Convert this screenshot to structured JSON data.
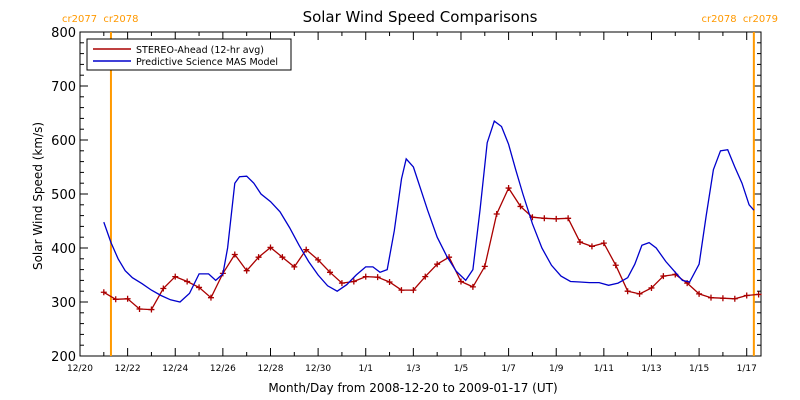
{
  "chart_data": {
    "type": "line",
    "title": "Solar Wind Speed Comparisons",
    "xlabel": "Month/Day from 2008-12-20 to 2009-01-17 (UT)",
    "ylabel": "Solar Wind Speed (km/s)",
    "x_start_date": "2008-12-20",
    "xlim": [
      0,
      28.6
    ],
    "ylim": [
      200,
      800
    ],
    "y_ticks": [
      200,
      300,
      400,
      500,
      600,
      700,
      800
    ],
    "x_ticks": [
      {
        "x": 0,
        "label": "12/20"
      },
      {
        "x": 2,
        "label": "12/22"
      },
      {
        "x": 4,
        "label": "12/24"
      },
      {
        "x": 6,
        "label": "12/26"
      },
      {
        "x": 8,
        "label": "12/28"
      },
      {
        "x": 10,
        "label": "12/30"
      },
      {
        "x": 12,
        "label": "1/1"
      },
      {
        "x": 14,
        "label": "1/3"
      },
      {
        "x": 16,
        "label": "1/5"
      },
      {
        "x": 18,
        "label": "1/7"
      },
      {
        "x": 20,
        "label": "1/9"
      },
      {
        "x": 22,
        "label": "1/11"
      },
      {
        "x": 24,
        "label": "1/13"
      },
      {
        "x": 26,
        "label": "1/15"
      },
      {
        "x": 28,
        "label": "1/17"
      }
    ],
    "carrington_markers": [
      {
        "x": 1.3,
        "label": "cr2077  cr2078",
        "align": "left"
      },
      {
        "x": 28.3,
        "label": "cr2078  cr2079",
        "align": "right"
      }
    ],
    "legend_position": "top-left",
    "series": [
      {
        "name": "STEREO-Ahead (12-hr avg)",
        "color": "#aa0000",
        "markers": true,
        "x": [
          1.0,
          1.5,
          2.0,
          2.5,
          3.0,
          3.5,
          4.0,
          4.5,
          5.0,
          5.5,
          6.0,
          6.5,
          7.0,
          7.5,
          8.0,
          8.5,
          9.0,
          9.5,
          10.0,
          10.5,
          11.0,
          11.5,
          12.0,
          12.5,
          13.0,
          13.5,
          14.0,
          14.5,
          15.0,
          15.5,
          16.0,
          16.5,
          17.0,
          17.5,
          18.0,
          18.5,
          19.0,
          19.5,
          20.0,
          20.5,
          21.0,
          21.5,
          22.0,
          22.5,
          23.0,
          23.5,
          24.0,
          24.5,
          25.0,
          25.5,
          26.0,
          26.5,
          27.0,
          27.5,
          28.0,
          28.5
        ],
        "y": [
          318,
          305,
          306,
          287,
          286,
          325,
          347,
          338,
          327,
          308,
          353,
          388,
          358,
          383,
          401,
          383,
          365,
          397,
          378,
          355,
          335,
          338,
          347,
          346,
          337,
          322,
          322,
          347,
          370,
          383,
          338,
          328,
          366,
          463,
          511,
          477,
          457,
          455,
          454,
          455,
          411,
          403,
          409,
          368,
          320,
          315,
          326,
          348,
          351,
          335,
          315,
          308,
          307,
          306,
          312,
          314
        ]
      },
      {
        "name": "Predictive Science MAS Model",
        "color": "#0000cc",
        "markers": false,
        "x": [
          1.0,
          1.3,
          1.6,
          1.9,
          2.2,
          2.6,
          3.0,
          3.4,
          3.8,
          4.2,
          4.6,
          5.0,
          5.4,
          5.7,
          6.0,
          6.2,
          6.5,
          6.7,
          7.0,
          7.3,
          7.6,
          8.0,
          8.4,
          8.8,
          9.2,
          9.6,
          10.0,
          10.4,
          10.8,
          11.2,
          11.6,
          12.0,
          12.3,
          12.6,
          12.9,
          13.2,
          13.5,
          13.7,
          14.0,
          14.3,
          14.6,
          15.0,
          15.4,
          15.8,
          16.2,
          16.5,
          16.8,
          17.1,
          17.4,
          17.7,
          18.0,
          18.3,
          18.6,
          19.0,
          19.4,
          19.8,
          20.2,
          20.6,
          21.0,
          21.4,
          21.8,
          22.2,
          22.6,
          23.0,
          23.3,
          23.6,
          23.9,
          24.2,
          24.6,
          25.0,
          25.3,
          25.6,
          26.0,
          26.3,
          26.6,
          26.9,
          27.2,
          27.5,
          27.8,
          28.1,
          28.3
        ],
        "y": [
          448,
          410,
          380,
          358,
          345,
          334,
          322,
          312,
          304,
          300,
          316,
          352,
          352,
          340,
          352,
          400,
          520,
          532,
          533,
          520,
          500,
          486,
          467,
          438,
          405,
          375,
          350,
          330,
          320,
          332,
          350,
          365,
          365,
          355,
          360,
          432,
          528,
          565,
          550,
          510,
          470,
          420,
          385,
          357,
          340,
          360,
          470,
          595,
          635,
          625,
          592,
          545,
          500,
          445,
          400,
          368,
          348,
          338,
          337,
          336,
          336,
          331,
          335,
          345,
          370,
          405,
          410,
          400,
          375,
          355,
          340,
          337,
          370,
          460,
          545,
          580,
          582,
          550,
          520,
          480,
          470
        ]
      }
    ]
  }
}
